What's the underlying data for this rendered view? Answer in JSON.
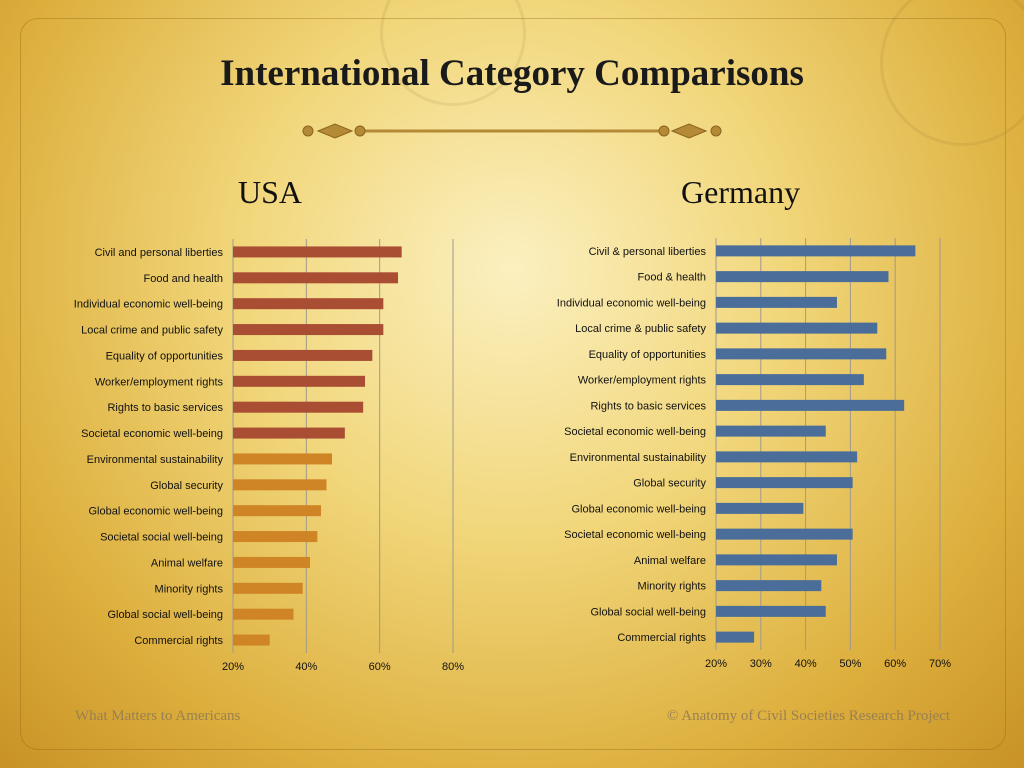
{
  "slide": {
    "title": "International Category Comparisons",
    "footer_left": "What Matters to Americans",
    "footer_right": "© Anatomy of Civil Societies Research Project"
  },
  "colors": {
    "usa_top": "#a94d33",
    "usa_bottom": "#cf8426",
    "germany": "#4a6d9a",
    "gridline": "#9f9a8c",
    "divider": "#b58a37"
  },
  "chart_data": [
    {
      "type": "bar",
      "orientation": "horizontal",
      "title": "USA",
      "categories": [
        "Civil and personal liberties",
        "Food and health",
        "Individual economic well-being",
        "Local crime and public safety",
        "Equality of opportunities",
        "Worker/employment rights",
        "Rights to basic services",
        "Societal economic well-being",
        "Environmental sustainability",
        "Global security",
        "Global economic well-being",
        "Societal social well-being",
        "Animal welfare",
        "Minority rights",
        "Global social well-being",
        "Commercial rights"
      ],
      "values": [
        66,
        65,
        61,
        61,
        58,
        56,
        55.5,
        50.5,
        47,
        45.5,
        44,
        43,
        41,
        39,
        36.5,
        30
      ],
      "xlim": [
        20,
        80
      ],
      "xticks": [
        "20%",
        "40%",
        "60%",
        "80%"
      ],
      "grid": true
    },
    {
      "type": "bar",
      "orientation": "horizontal",
      "title": "Germany",
      "categories": [
        "Civil & personal liberties",
        "Food & health",
        "Individual economic well-being",
        "Local crime & public safety",
        "Equality of opportunities",
        "Worker/employment rights",
        "Rights to basic services",
        "Societal economic well-being",
        "Environmental sustainability",
        "Global security",
        "Global economic well-being",
        "Societal economic well-being",
        "Animal welfare",
        "Minority rights",
        "Global social well-being",
        "Commercial rights"
      ],
      "values": [
        64.5,
        58.5,
        47,
        56,
        58,
        53,
        62,
        44.5,
        51.5,
        50.5,
        39.5,
        50.5,
        47,
        43.5,
        44.5,
        28.5
      ],
      "xlim": [
        20,
        70
      ],
      "xticks": [
        "20%",
        "30%",
        "40%",
        "50%",
        "60%",
        "70%"
      ],
      "grid": true
    }
  ]
}
